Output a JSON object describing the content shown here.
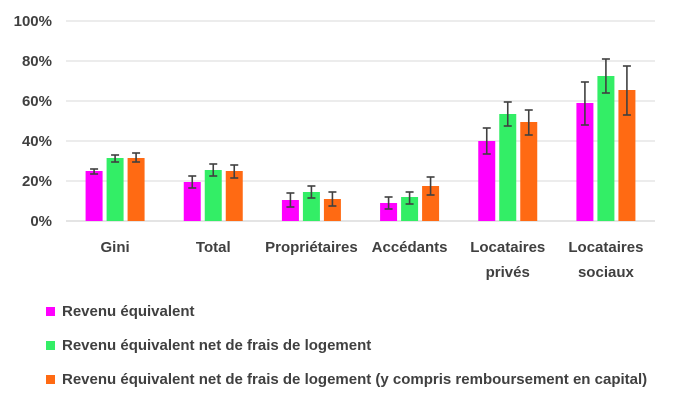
{
  "chart_data": {
    "type": "bar",
    "categories": [
      [
        "Gini"
      ],
      [
        "Total"
      ],
      [
        "Propriétaires"
      ],
      [
        "Accédants"
      ],
      [
        "Locataires",
        "privés"
      ],
      [
        "Locataires",
        "sociaux"
      ]
    ],
    "ylim": [
      0,
      100
    ],
    "yticks": [
      "0%",
      "20%",
      "40%",
      "60%",
      "80%",
      "100%"
    ],
    "ytick_values": [
      0,
      20,
      40,
      60,
      80,
      100
    ],
    "grid": true,
    "legend_position": "bottom-left",
    "error_bars": true,
    "series": [
      {
        "name": "Revenu équivalent",
        "color": "#ff00ff",
        "values": [
          25,
          19.5,
          10.5,
          9,
          40,
          59
        ],
        "err_low": [
          23.5,
          16.5,
          7,
          6,
          33.5,
          48
        ],
        "err_high": [
          26,
          22.5,
          14,
          12,
          46.5,
          69.5
        ]
      },
      {
        "name": "Revenu équivalent net de frais de logement",
        "color": "#33ee66",
        "values": [
          31.5,
          25.5,
          14.5,
          12,
          53.5,
          72.5
        ],
        "err_low": [
          29.5,
          22.5,
          11.5,
          8.5,
          47.5,
          64
        ],
        "err_high": [
          33,
          28.5,
          17.5,
          14.5,
          59.5,
          81
        ]
      },
      {
        "name": "Revenu équivalent net de frais de logement (y compris remboursement en capital)",
        "color": "#ff6a13",
        "values": [
          31.5,
          25,
          11,
          17.5,
          49.5,
          65.5
        ],
        "err_low": [
          29.5,
          21.5,
          7.5,
          13,
          43,
          53
        ],
        "err_high": [
          34,
          28,
          14.5,
          22,
          55.5,
          77.5
        ]
      }
    ]
  }
}
